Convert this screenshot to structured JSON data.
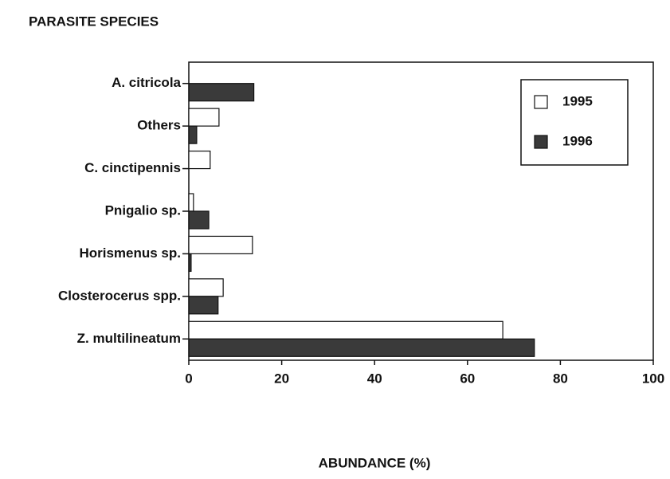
{
  "chart_data": {
    "type": "barh",
    "title": "PARASITE SPECIES",
    "x_label": "ABUNDANCE (%)",
    "categories": [
      "A. citricola",
      "Others",
      "C. cinctipennis",
      "Pnigalio  sp.",
      "Horismenus  sp.",
      "Closterocerus  spp.",
      "Z. multilineatum"
    ],
    "series": [
      {
        "name": "1995",
        "color": "#ffffff",
        "values": [
          0,
          6.5,
          4.6,
          1,
          13.7,
          7.4,
          67.6
        ]
      },
      {
        "name": "1996",
        "color": "#3a3a3a",
        "values": [
          14,
          1.7,
          0,
          4.3,
          0.5,
          6.3,
          74.4
        ]
      }
    ],
    "xlim": [
      0,
      100
    ],
    "xticks": [
      0,
      20,
      40,
      60,
      80,
      100
    ],
    "legend": "upper right"
  }
}
